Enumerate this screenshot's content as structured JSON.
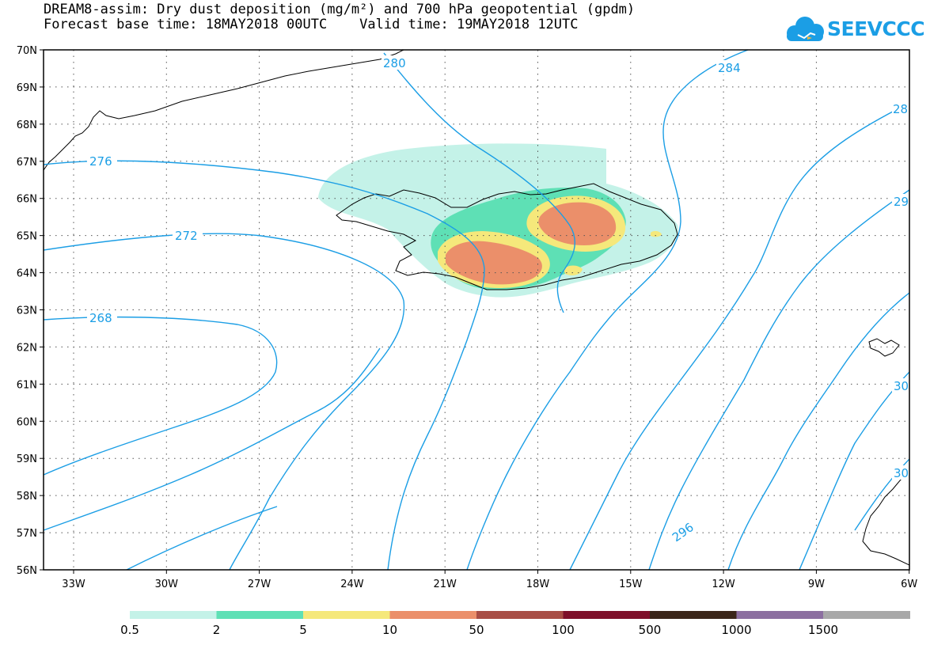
{
  "title": {
    "line1": "DREAM8-assim: Dry dust deposition (mg/m²) and 700 hPa geopotential (gpdm)",
    "line2": "Forecast base time: 18MAY2018 00UTC    Valid time: 19MAY2018 12UTC"
  },
  "logo": {
    "text": "SEEVCCC",
    "icon": "cloud-icon",
    "color": "#1b9ee5"
  },
  "axes": {
    "lat_labels": [
      "70N",
      "69N",
      "68N",
      "67N",
      "66N",
      "65N",
      "64N",
      "63N",
      "62N",
      "61N",
      "60N",
      "59N",
      "58N",
      "57N",
      "56N"
    ],
    "lon_labels": [
      "33W",
      "30W",
      "27W",
      "24W",
      "21W",
      "18W",
      "15W",
      "12W",
      "9W",
      "6W"
    ]
  },
  "contours": {
    "color": "#1b9ee5",
    "labels": [
      "280",
      "284",
      "28",
      "276",
      "29",
      "272",
      "268",
      "30",
      "30",
      "296"
    ]
  },
  "legend": {
    "colors": [
      "#c4f2e8",
      "#5ee0b5",
      "#f5e87b",
      "#eb8f6a",
      "#a84d45",
      "#7e0f2a",
      "#3a2519",
      "#8c6fa0",
      "#a8a8a8"
    ],
    "labels": [
      "0.5",
      "2",
      "5",
      "10",
      "50",
      "100",
      "500",
      "1000",
      "1500"
    ]
  }
}
